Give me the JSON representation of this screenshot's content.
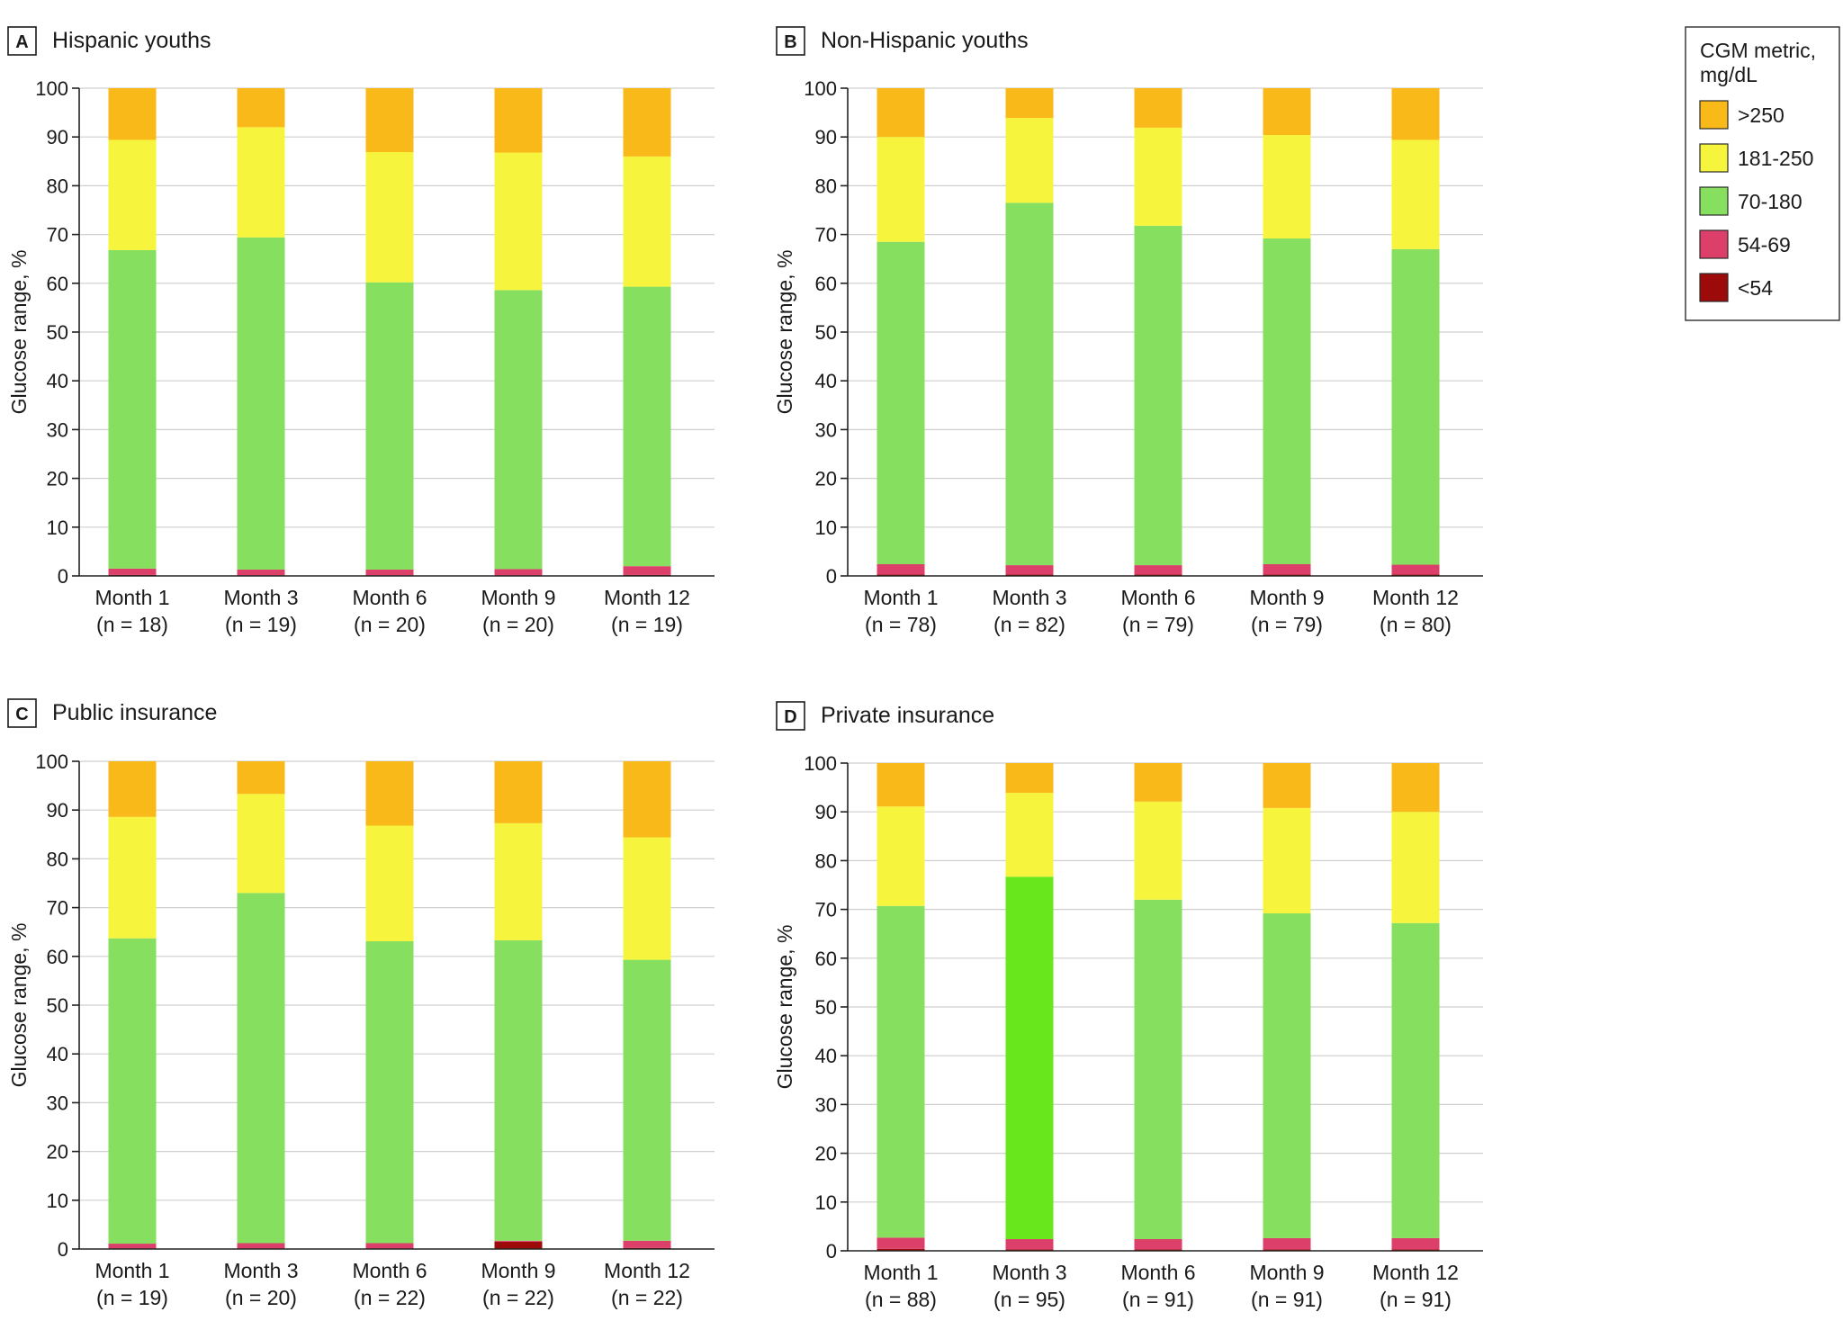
{
  "figure": {
    "legend": {
      "title_line1": "CGM metric,",
      "title_line2": "mg/dL",
      "items": [
        {
          "key": "gt250",
          "label": ">250",
          "color": "#f9b919"
        },
        {
          "key": "r181_250",
          "label": "181-250",
          "color": "#f6f43c"
        },
        {
          "key": "r70_180",
          "label": "70-180",
          "color": "#86df5e"
        },
        {
          "key": "r54_69",
          "label": "54-69",
          "color": "#db3f6a"
        },
        {
          "key": "lt54",
          "label": "<54",
          "color": "#9c0a0a"
        }
      ]
    }
  },
  "chart_data": [
    {
      "type": "bar",
      "stacked": true,
      "panel_letter": "A",
      "title": "Hispanic youths",
      "ylabel": "Glucose range, %",
      "ylim": [
        0,
        100
      ],
      "yticks": [
        0,
        10,
        20,
        30,
        40,
        50,
        60,
        70,
        80,
        90,
        100
      ],
      "categories": [
        "Month 1",
        "Month 3",
        "Month 6",
        "Month 9",
        "Month 12"
      ],
      "category_n": [
        "(n = 18)",
        "(n = 19)",
        "(n = 20)",
        "(n = 20)",
        "(n = 19)"
      ],
      "series": [
        {
          "name": "<54",
          "values": [
            0.2,
            0.1,
            0.1,
            0.1,
            0.2
          ]
        },
        {
          "name": "54-69",
          "values": [
            1.3,
            1.2,
            1.2,
            1.3,
            1.8
          ]
        },
        {
          "name": "70-180",
          "values": [
            65.3,
            68.1,
            58.9,
            57.2,
            57.3
          ]
        },
        {
          "name": "181-250",
          "values": [
            22.6,
            22.6,
            26.7,
            28.2,
            26.7
          ]
        },
        {
          "name": ">250",
          "values": [
            10.6,
            8.0,
            13.1,
            13.2,
            14.0
          ]
        }
      ]
    },
    {
      "type": "bar",
      "stacked": true,
      "panel_letter": "B",
      "title": "Non-Hispanic youths",
      "ylabel": "Glucose range, %",
      "ylim": [
        0,
        100
      ],
      "yticks": [
        0,
        10,
        20,
        30,
        40,
        50,
        60,
        70,
        80,
        90,
        100
      ],
      "categories": [
        "Month 1",
        "Month 3",
        "Month 6",
        "Month 9",
        "Month 12"
      ],
      "category_n": [
        "(n = 78)",
        "(n = 82)",
        "(n = 79)",
        "(n = 79)",
        "(n = 80)"
      ],
      "series": [
        {
          "name": "<54",
          "values": [
            0.3,
            0.3,
            0.3,
            0.3,
            0.3
          ]
        },
        {
          "name": "54-69",
          "values": [
            2.1,
            1.9,
            1.9,
            2.1,
            2.0
          ]
        },
        {
          "name": "70-180",
          "values": [
            66.1,
            74.3,
            69.6,
            66.8,
            64.7
          ]
        },
        {
          "name": "181-250",
          "values": [
            21.5,
            17.4,
            20.1,
            21.2,
            22.4
          ]
        },
        {
          "name": ">250",
          "values": [
            10.0,
            6.1,
            8.1,
            9.6,
            10.6
          ]
        }
      ]
    },
    {
      "type": "bar",
      "stacked": true,
      "panel_letter": "C",
      "title": "Public insurance",
      "ylabel": "Glucose range, %",
      "ylim": [
        0,
        100
      ],
      "yticks": [
        0,
        10,
        20,
        30,
        40,
        50,
        60,
        70,
        80,
        90,
        100
      ],
      "categories": [
        "Month 1",
        "Month 3",
        "Month 6",
        "Month 9",
        "Month 12"
      ],
      "category_n": [
        "(n = 19)",
        "(n = 20)",
        "(n = 22)",
        "(n = 22)",
        "(n = 22)"
      ],
      "series": [
        {
          "name": "<54",
          "values": [
            0.1,
            0.1,
            0.1,
            1.5,
            0.2
          ]
        },
        {
          "name": "54-69",
          "values": [
            1.0,
            1.1,
            1.1,
            0.2,
            1.5
          ]
        },
        {
          "name": "70-180",
          "values": [
            62.6,
            71.8,
            61.9,
            61.6,
            57.6
          ]
        },
        {
          "name": "181-250",
          "values": [
            24.9,
            20.3,
            23.7,
            24.0,
            25.1
          ]
        },
        {
          "name": ">250",
          "values": [
            11.4,
            6.7,
            13.2,
            12.7,
            15.6
          ]
        }
      ]
    },
    {
      "type": "bar",
      "stacked": true,
      "panel_letter": "D",
      "title": "Private insurance",
      "ylabel": "Glucose range, %",
      "ylim": [
        0,
        100
      ],
      "yticks": [
        0,
        10,
        20,
        30,
        40,
        50,
        60,
        70,
        80,
        90,
        100
      ],
      "categories": [
        "Month 1",
        "Month 3",
        "Month 6",
        "Month 9",
        "Month 12"
      ],
      "category_n": [
        "(n = 88)",
        "(n = 95)",
        "(n = 91)",
        "(n = 91)",
        "(n = 91)"
      ],
      "series": [
        {
          "name": "<54",
          "values": [
            0.4,
            0.3,
            0.3,
            0.3,
            0.3
          ]
        },
        {
          "name": "54-69",
          "values": [
            2.3,
            2.1,
            2.1,
            2.3,
            2.3
          ]
        },
        {
          "name": "70-180",
          "values": [
            68.0,
            74.3,
            69.6,
            66.6,
            64.6
          ]
        },
        {
          "name": "181-250",
          "values": [
            20.4,
            17.2,
            20.1,
            21.6,
            22.8
          ]
        },
        {
          "name": ">250",
          "values": [
            8.9,
            6.1,
            7.9,
            9.2,
            10.0
          ]
        }
      ]
    }
  ]
}
